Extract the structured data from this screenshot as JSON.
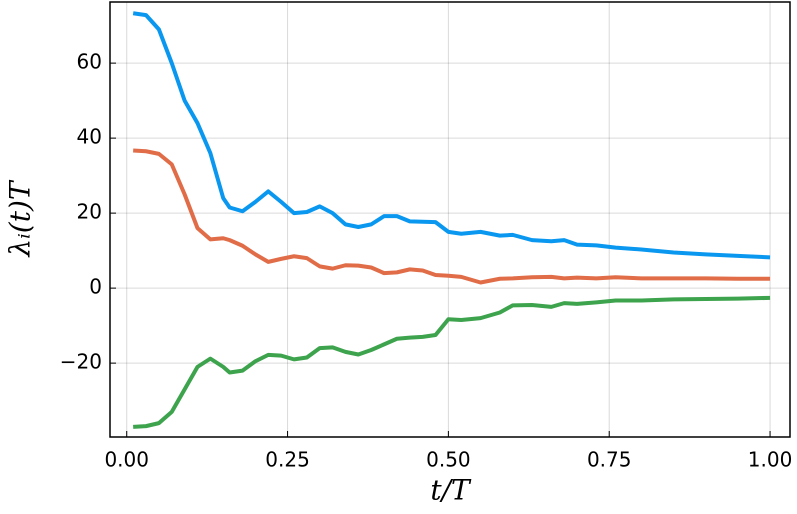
{
  "chart_data": {
    "type": "line",
    "x_label": "t/T",
    "y_label": "λᵢ(t)T",
    "x": [
      0.01,
      0.03,
      0.05,
      0.07,
      0.09,
      0.11,
      0.13,
      0.15,
      0.16,
      0.18,
      0.2,
      0.22,
      0.24,
      0.26,
      0.28,
      0.3,
      0.32,
      0.34,
      0.36,
      0.38,
      0.4,
      0.42,
      0.44,
      0.46,
      0.48,
      0.5,
      0.52,
      0.55,
      0.58,
      0.6,
      0.63,
      0.66,
      0.68,
      0.7,
      0.73,
      0.76,
      0.8,
      0.85,
      0.9,
      0.95,
      1.0
    ],
    "series": [
      {
        "color": "#0a97f0",
        "values": [
          73.3,
          72.8,
          69,
          60,
          50,
          44,
          36,
          24,
          21.5,
          20.5,
          23,
          25.8,
          23,
          20,
          20.3,
          21.8,
          20,
          17,
          16.3,
          17,
          19.2,
          19.2,
          17.8,
          17.7,
          17.6,
          15,
          14.5,
          15,
          14,
          14.2,
          12.8,
          12.5,
          12.8,
          11.6,
          11.4,
          10.8,
          10.3,
          9.5,
          9,
          8.6,
          8.2
        ]
      },
      {
        "color": "#e06d48",
        "values": [
          36.7,
          36.5,
          35.8,
          33,
          25,
          16,
          13,
          13.3,
          12.8,
          11.3,
          9,
          7,
          7.8,
          8.5,
          8,
          5.8,
          5.2,
          6.1,
          6,
          5.5,
          4,
          4.2,
          5,
          4.7,
          3.5,
          3.3,
          3,
          1.5,
          2.5,
          2.6,
          2.9,
          3,
          2.6,
          2.8,
          2.6,
          2.9,
          2.6,
          2.6,
          2.6,
          2.5,
          2.5
        ]
      },
      {
        "color": "#3da34d",
        "values": [
          -37,
          -36.8,
          -36,
          -33,
          -27,
          -21,
          -18.8,
          -21,
          -22.5,
          -22,
          -19.5,
          -17.8,
          -18,
          -19,
          -18.5,
          -16,
          -15.8,
          -17,
          -17.7,
          -16.5,
          -15,
          -13.5,
          -13.2,
          -13,
          -12.5,
          -8.3,
          -8.5,
          -8,
          -6.5,
          -4.6,
          -4.5,
          -5,
          -4,
          -4.2,
          -3.8,
          -3.3,
          -3.3,
          -3,
          -2.9,
          -2.8,
          -2.6
        ]
      }
    ],
    "xlim": [
      -0.026,
      1.031
    ],
    "ylim": [
      -39.7,
      76.3
    ],
    "xticks": [
      {
        "value": 0,
        "label": "0.00"
      },
      {
        "value": 0.25,
        "label": "0.25"
      },
      {
        "value": 0.5,
        "label": "0.50"
      },
      {
        "value": 0.75,
        "label": "0.75"
      },
      {
        "value": 1,
        "label": "1.00"
      }
    ],
    "yticks": [
      {
        "value": -20,
        "label": "−20"
      },
      0,
      20,
      40,
      60
    ],
    "grid": true
  }
}
